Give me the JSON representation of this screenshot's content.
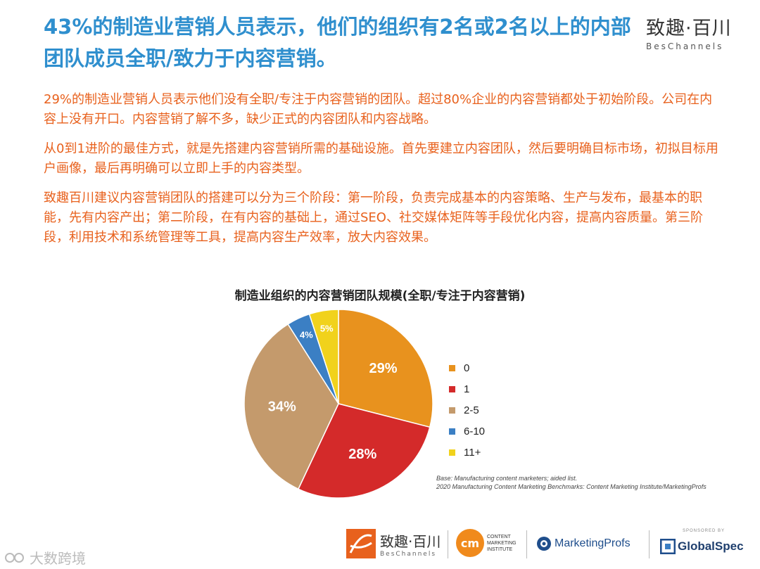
{
  "header": {
    "title": "43%的制造业营销人员表示，他们的组织有2名或2名以上的内部团队成员全职/致力于内容营销。",
    "brand_cn": "致趣·百川",
    "brand_en": "BesChannels"
  },
  "paragraphs": [
    "29%的制造业营销人员表示他们没有全职/专注于内容营销的团队。超过80%企业的内容营销都处于初始阶段。公司在内容上没有开口。内容营销了解不多，缺少正式的内容团队和内容战略。",
    "从0到1进阶的最佳方式，就是先搭建内容营销所需的基础设施。首先要建立内容团队，然后要明确目标市场，初拟目标用户画像，最后再明确可以立即上手的内容类型。",
    "致趣百川建议内容营销团队的搭建可以分为三个阶段：第一阶段，负责完成基本的内容策略、生产与发布，最基本的职能，先有内容产出；第二阶段，在有内容的基础上，通过SEO、社交媒体矩阵等手段优化内容，提高内容质量。第三阶段，利用技术和系统管理等工具，提高内容生产效率，放大内容效果。"
  ],
  "chart_data": {
    "type": "pie",
    "title": "制造业组织的内容营销团队规模(全职/专注于内容营销)",
    "categories": [
      "0",
      "1",
      "2-5",
      "6-10",
      "11+"
    ],
    "values": [
      29,
      28,
      34,
      4,
      5
    ],
    "value_labels": [
      "29%",
      "28%",
      "34%",
      "4%",
      "5%"
    ],
    "colors": [
      "#e8921e",
      "#d42a2a",
      "#c49a6c",
      "#3b7fc4",
      "#f1d21c"
    ],
    "legend_position": "right",
    "base_note": "Base: Manufacturing content marketers; aided list.",
    "source_note": "2020 Manufacturing Content Marketing Benchmarks: Content Marketing Institute/MarketingProfs"
  },
  "footer": {
    "beschannels_cn": "致趣·百川",
    "beschannels_en": "BesChannels",
    "cmi_line1": "CONTENT",
    "cmi_line2": "MARKETING",
    "cmi_line3": "INSTITUTE",
    "cmi_mark": "cm",
    "marketingprofs": "MarketingProfs",
    "sponsored_by": "SPONSORED BY",
    "globalspec": "GlobalSpec",
    "watermark": "大数跨境"
  }
}
